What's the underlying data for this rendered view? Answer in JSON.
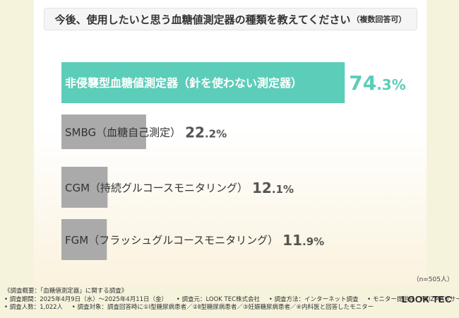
{
  "title": {
    "main": "今後、使用したいと思う血糖値測定器の種類を教えてください",
    "suffix": "（複数回答可）"
  },
  "chart_data": {
    "type": "bar",
    "orientation": "horizontal",
    "categories": [
      "非侵襲型血糖値測定器（針を使わない測定器）",
      "SMBG（血糖自己測定）",
      "CGM（持続グルコースモニタリング）",
      "FGM（フラッシュグルコースモニタリング）"
    ],
    "values": [
      74.3,
      22.2,
      12.1,
      11.9
    ],
    "value_labels": [
      {
        "int": "74",
        "dec": ".3%"
      },
      {
        "int": "22",
        "dec": ".2%"
      },
      {
        "int": "12",
        "dec": ".1%"
      },
      {
        "int": "11",
        "dec": ".9%"
      }
    ],
    "colors": [
      "#5ccdb9",
      "#aaaaaa",
      "#aaaaaa",
      "#aaaaaa"
    ],
    "label_colors": [
      "#ffffff",
      "#333333",
      "#333333",
      "#333333"
    ],
    "value_colors": [
      "#5ccdb9",
      "#555555",
      "#555555",
      "#555555"
    ],
    "xlim": [
      0,
      100
    ],
    "n_label": "（n=505人）"
  },
  "footer": {
    "line1": "《調査概要：「血糖値測定器」に関する調査》",
    "line2": [
      "• 調査期間：2025年4月9日（水）〜2025年4月11日（金）",
      "• 調査元：LOOK TEC株式会社",
      "• 調査方法：インターネット調査",
      "• モニター提供元：PRIZMAリサーチ"
    ],
    "line3": [
      "• 調査人数：1,022人",
      "• 調査対象：調査回答時に①Ⅰ型糖尿病患者／②Ⅱ型糖尿病患者／③妊娠糖尿病患者／④内科医と回答したモニター"
    ],
    "logo": "LOOK TEC"
  }
}
